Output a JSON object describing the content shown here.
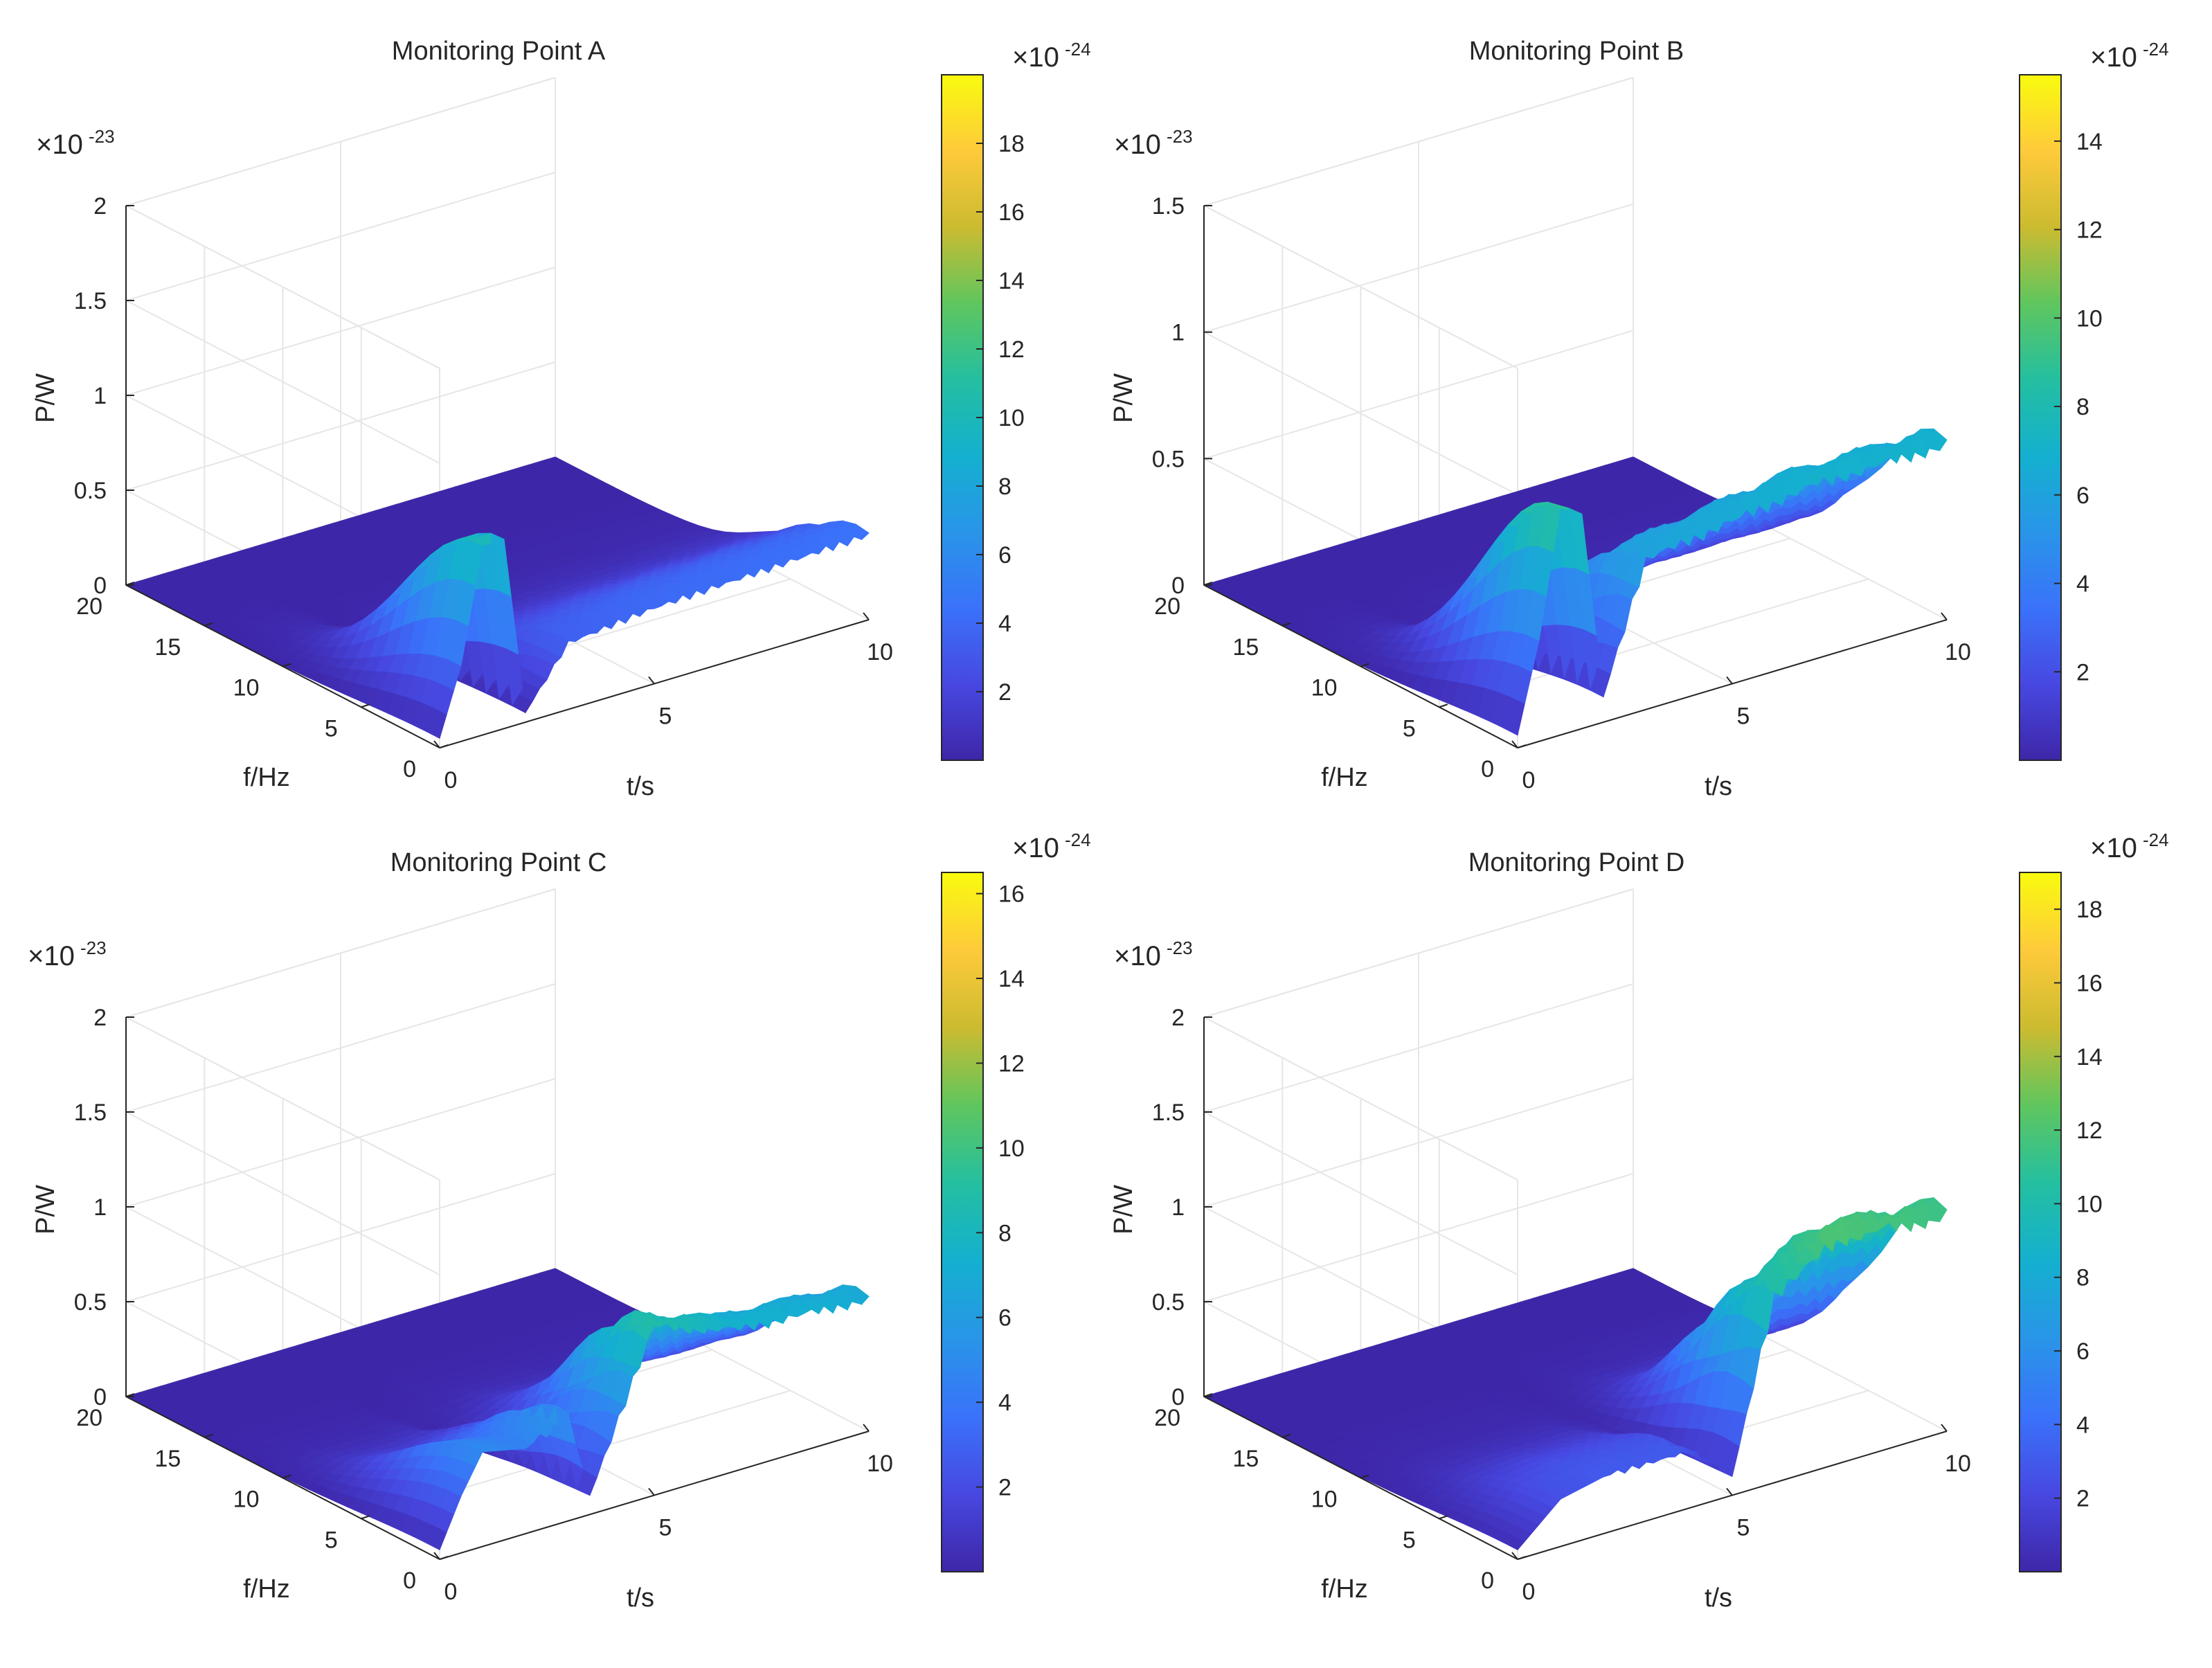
{
  "chart_data": [
    {
      "type": "surface3d",
      "title": "Monitoring Point A",
      "xlabel": "t/s",
      "ylabel": "f/Hz",
      "zlabel": "P/W",
      "z_exponent_label": "×10",
      "z_exponent_power": "-23",
      "z_ticks": [
        "0",
        "0.5",
        "1",
        "1.5",
        "2"
      ],
      "z_range": [
        0,
        2
      ],
      "t_ticks": [
        "0",
        "5",
        "10"
      ],
      "t_range": [
        0,
        10
      ],
      "f_ticks": [
        "0",
        "5",
        "10",
        "15",
        "20"
      ],
      "f_range": [
        0,
        20
      ],
      "colorbar_exponent_label": "×10",
      "colorbar_exponent_power": "-24",
      "colorbar_ticks": [
        "2",
        "4",
        "6",
        "8",
        "10",
        "12",
        "14",
        "16",
        "18"
      ],
      "colorbar_range": [
        0,
        20
      ],
      "spectrum_shape": {
        "description_points_t_s": [
          0,
          0.5,
          1.0,
          1.5,
          2.0,
          3,
          5,
          7,
          10
        ],
        "peak_power_e23": [
          0.05,
          0.4,
          1.0,
          1.0,
          0.05,
          0.35,
          0.4,
          0.42,
          0.45
        ]
      }
    },
    {
      "type": "surface3d",
      "title": "Monitoring Point B",
      "xlabel": "t/s",
      "ylabel": "f/Hz",
      "zlabel": "P/W",
      "z_exponent_label": "×10",
      "z_exponent_power": "-23",
      "z_ticks": [
        "0",
        "0.5",
        "1",
        "1.5"
      ],
      "z_range": [
        0,
        1.5
      ],
      "t_ticks": [
        "0",
        "5",
        "10"
      ],
      "t_range": [
        0,
        10
      ],
      "f_ticks": [
        "0",
        "5",
        "10",
        "15",
        "20"
      ],
      "f_range": [
        0,
        20
      ],
      "colorbar_exponent_label": "×10",
      "colorbar_exponent_power": "-24",
      "colorbar_ticks": [
        "2",
        "4",
        "6",
        "8",
        "10",
        "12",
        "14"
      ],
      "colorbar_range": [
        0,
        15.5
      ],
      "spectrum_shape": {
        "description_points_t_s": [
          0,
          0.5,
          1.0,
          1.5,
          2.0,
          3,
          5,
          7,
          10
        ],
        "peak_power_e23": [
          0.05,
          0.4,
          0.9,
          0.85,
          0.1,
          0.6,
          0.65,
          0.7,
          0.7
        ]
      }
    },
    {
      "type": "surface3d",
      "title": "Monitoring Point C",
      "xlabel": "t/s",
      "ylabel": "f/Hz",
      "zlabel": "P/W",
      "z_exponent_label": "×10",
      "z_exponent_power": "-23",
      "z_ticks": [
        "0",
        "0.5",
        "1",
        "1.5",
        "2"
      ],
      "z_range": [
        0,
        2
      ],
      "t_ticks": [
        "0",
        "5",
        "10"
      ],
      "t_range": [
        0,
        10
      ],
      "f_ticks": [
        "0",
        "5",
        "10",
        "15",
        "20"
      ],
      "f_range": [
        0,
        20
      ],
      "colorbar_exponent_label": "×10",
      "colorbar_exponent_power": "-24",
      "colorbar_ticks": [
        "2",
        "4",
        "6",
        "8",
        "10",
        "12",
        "14",
        "16"
      ],
      "colorbar_range": [
        0,
        16.5
      ],
      "spectrum_shape": {
        "description_points_t_s": [
          0,
          0.5,
          1.0,
          2.0,
          3.0,
          3.5,
          5,
          7,
          10
        ],
        "peak_power_e23": [
          0.05,
          0.3,
          0.5,
          0.45,
          0.55,
          0.1,
          0.9,
          0.75,
          0.7
        ]
      }
    },
    {
      "type": "surface3d",
      "title": "Monitoring Point D",
      "xlabel": "t/s",
      "ylabel": "f/Hz",
      "zlabel": "P/W",
      "z_exponent_label": "×10",
      "z_exponent_power": "-23",
      "z_ticks": [
        "0",
        "0.5",
        "1",
        "1.5",
        "2"
      ],
      "z_range": [
        0,
        2
      ],
      "t_ticks": [
        "0",
        "5",
        "10"
      ],
      "t_range": [
        0,
        10
      ],
      "f_ticks": [
        "0",
        "5",
        "10",
        "15",
        "20"
      ],
      "f_range": [
        0,
        20
      ],
      "colorbar_exponent_label": "×10",
      "colorbar_exponent_power": "-24",
      "colorbar_ticks": [
        "2",
        "4",
        "6",
        "8",
        "10",
        "12",
        "14",
        "16",
        "18"
      ],
      "colorbar_range": [
        0,
        19
      ],
      "spectrum_shape": {
        "description_points_t_s": [
          0,
          0.5,
          1.0,
          2.0,
          4.0,
          5.0,
          6,
          7.5,
          10
        ],
        "peak_power_e23": [
          0.05,
          0.15,
          0.25,
          0.3,
          0.3,
          0.1,
          1.0,
          1.2,
          1.15
        ]
      }
    }
  ],
  "colormap": [
    "#3e26a8",
    "#4748e1",
    "#3a72fa",
    "#2995e8",
    "#14b0cf",
    "#24bfa0",
    "#5fc65e",
    "#ccbb30",
    "#feca3b",
    "#f9fb0e"
  ]
}
